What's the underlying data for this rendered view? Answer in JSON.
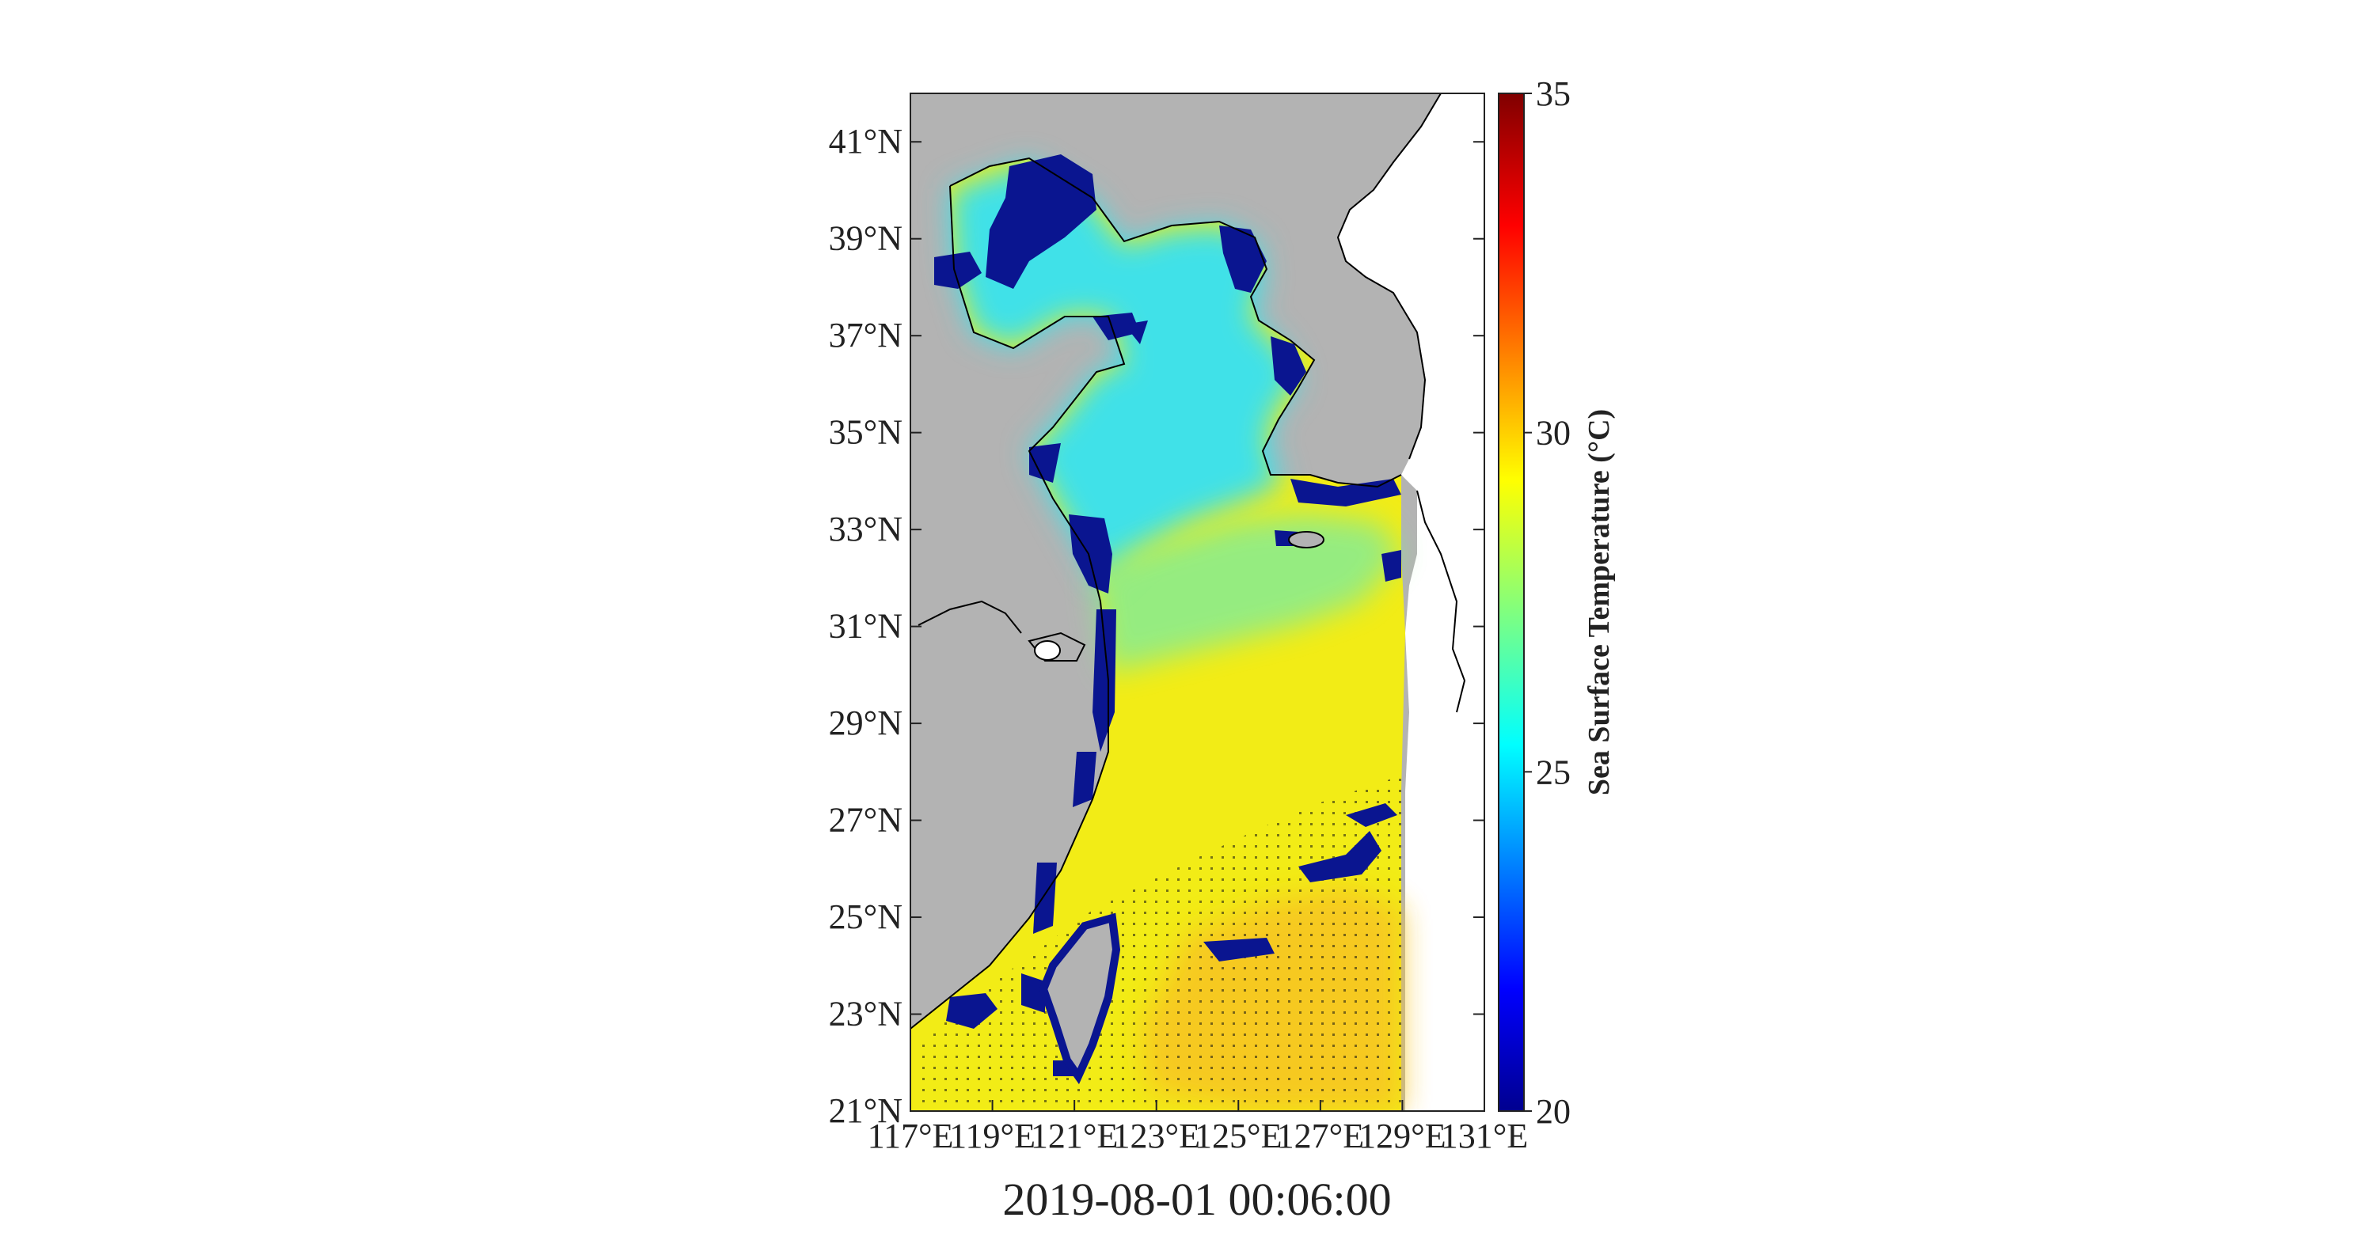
{
  "map": {
    "timestamp": "2019-08-01 00:06:00",
    "lat_ticks": [
      "41°N",
      "39°N",
      "37°N",
      "35°N",
      "33°N",
      "31°N",
      "29°N",
      "27°N",
      "25°N",
      "23°N",
      "21°N"
    ],
    "lon_ticks": [
      "117°E",
      "119°E",
      "121°E",
      "123°E",
      "125°E",
      "127°E",
      "129°E",
      "131°E"
    ],
    "lat_range": [
      21,
      42
    ],
    "lon_range": [
      117,
      131
    ],
    "colors": {
      "land": "#b3b3b3",
      "coastline": "#000000",
      "background": "#ffffff"
    }
  },
  "colorbar": {
    "title": "Sea Surface Temperature (°C)",
    "min": 20,
    "max": 35,
    "ticks": [
      "20",
      "25",
      "30",
      "35"
    ],
    "colormap": "jet"
  }
}
